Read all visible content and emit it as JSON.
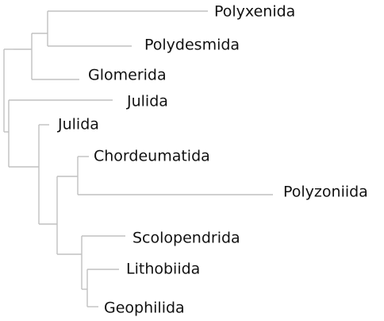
{
  "tree": {
    "line_color": "#c0c0c0",
    "text_color": "#111111",
    "leaves": [
      {
        "label": "Polyxenida"
      },
      {
        "label": "Polydesmida"
      },
      {
        "label": "Glomerida"
      },
      {
        "label": "Julida"
      },
      {
        "label": "Julida"
      },
      {
        "label": "Chordeumatida"
      },
      {
        "label": "Polyzoniida"
      },
      {
        "label": "Scolopendrida"
      },
      {
        "label": "Lithobiida"
      },
      {
        "label": "Geophilida"
      }
    ]
  }
}
